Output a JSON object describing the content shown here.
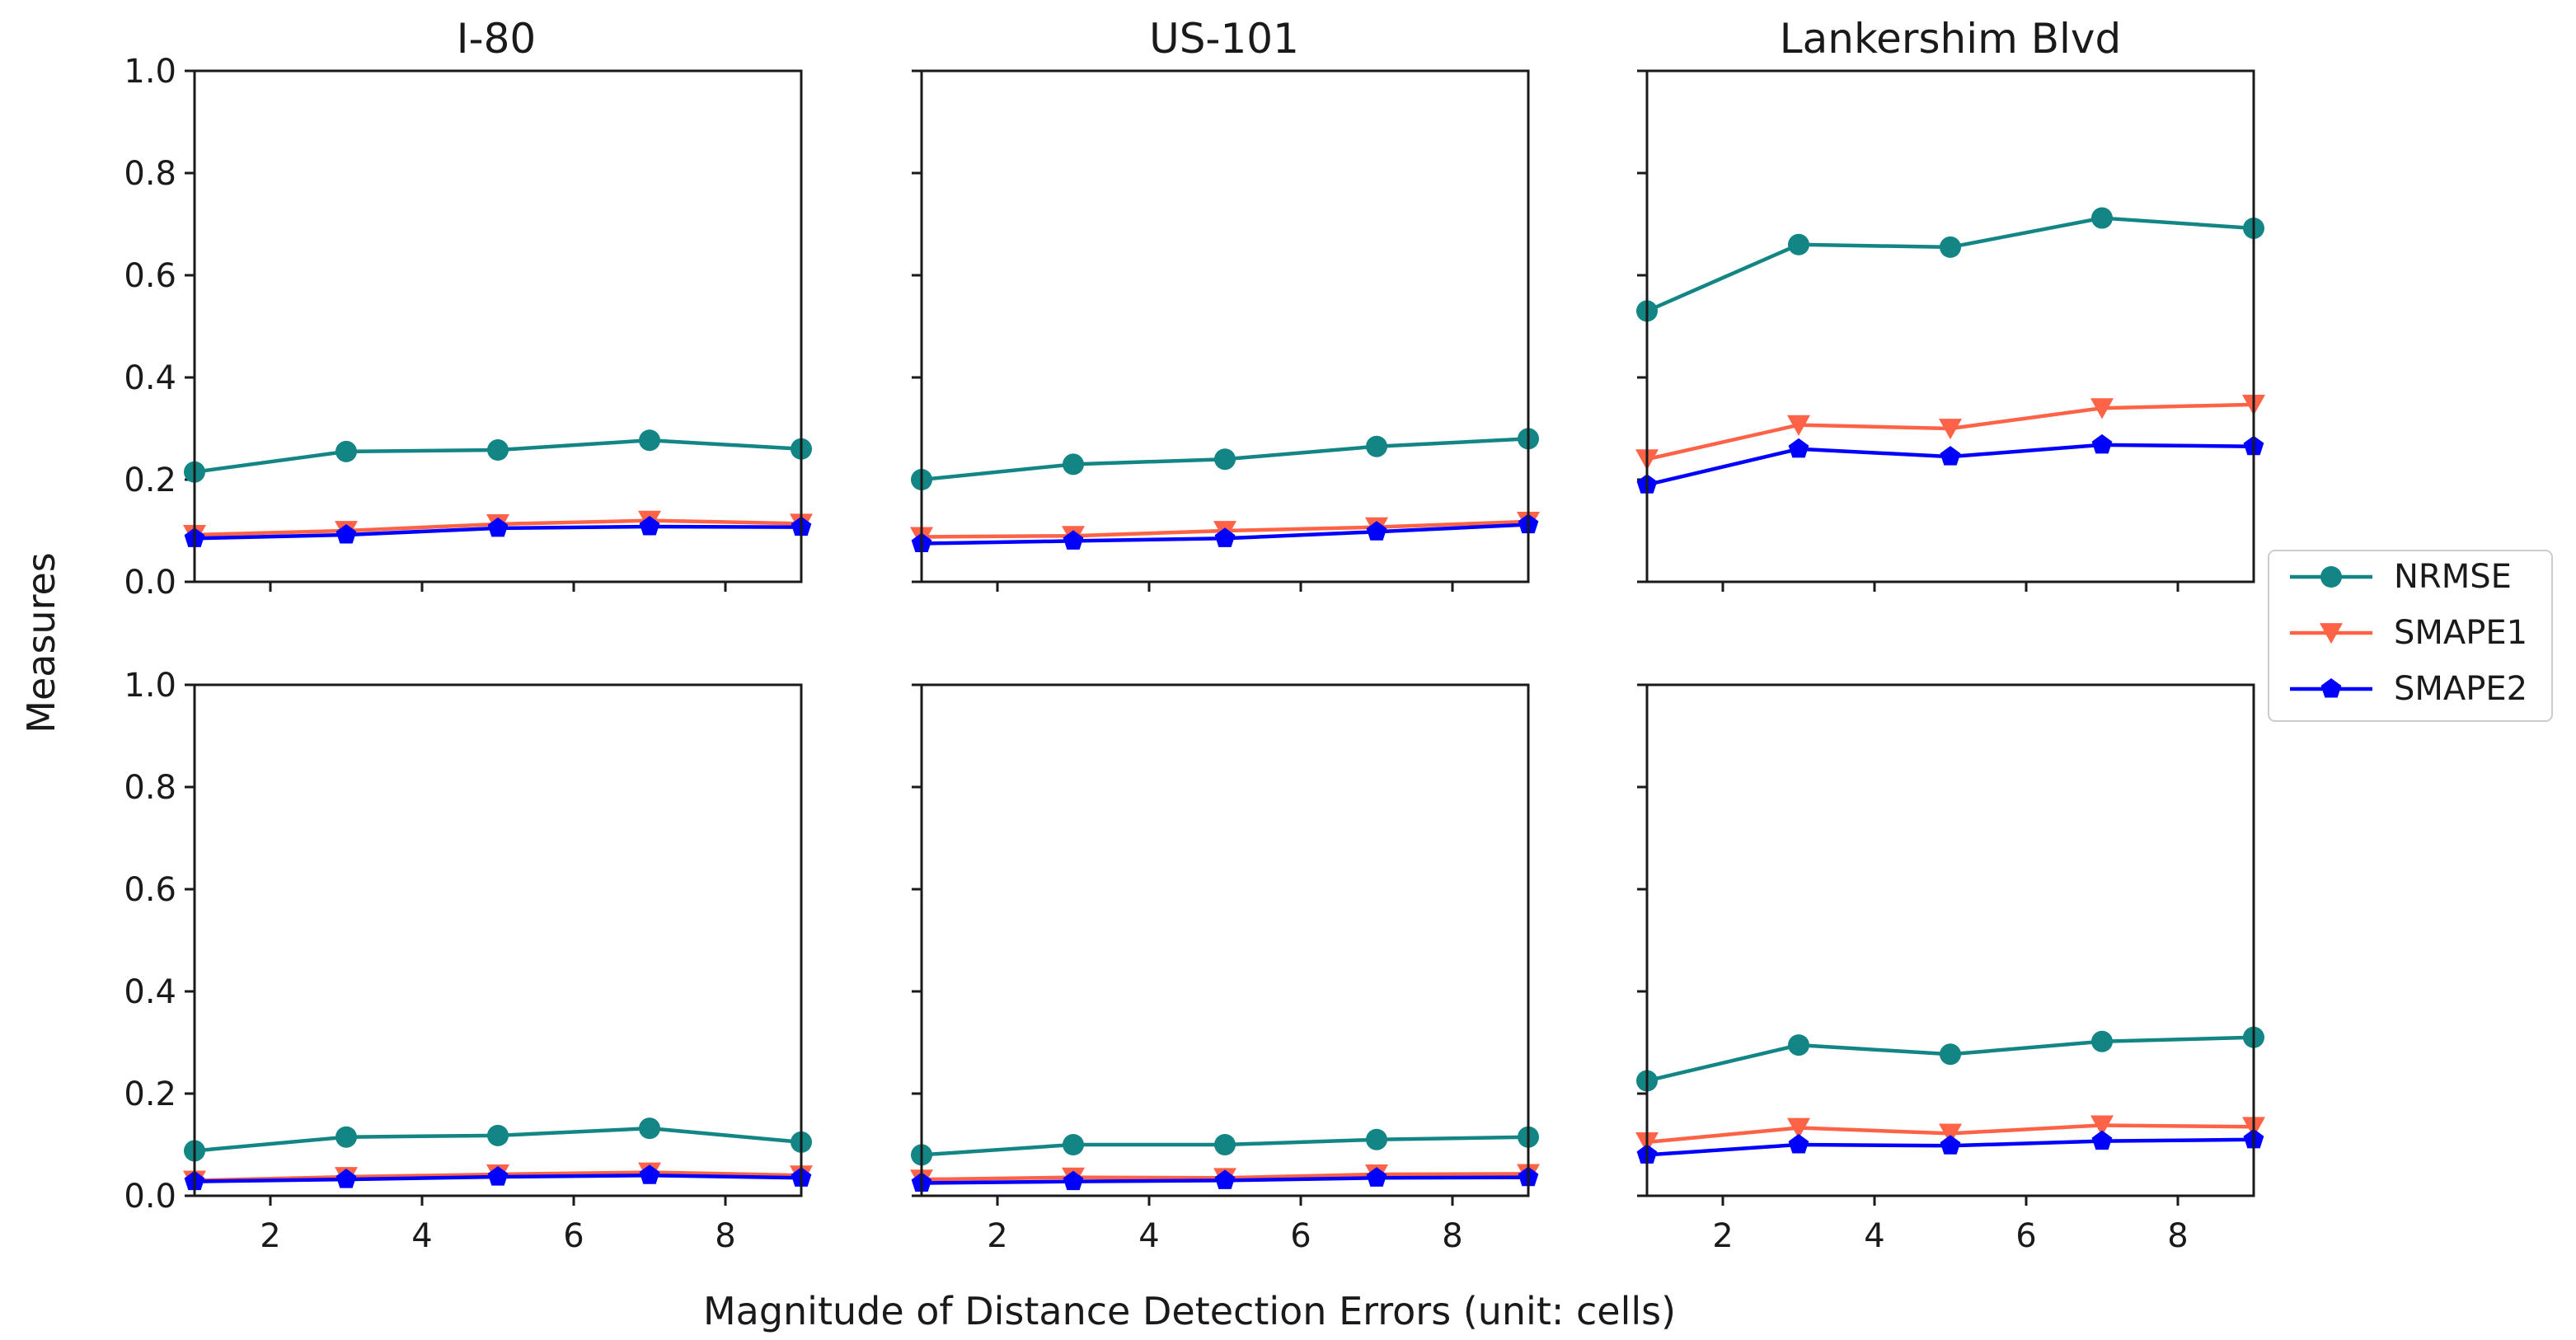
{
  "chart_data": {
    "type": "line",
    "layout": "2 rows x 3 columns",
    "x": [
      1,
      3,
      5,
      7,
      9
    ],
    "xlim": [
      1,
      9
    ],
    "ylim": [
      0,
      1
    ],
    "xticks": [
      "2",
      "4",
      "6",
      "8"
    ],
    "yticks": [
      "0.0",
      "0.2",
      "0.4",
      "0.6",
      "0.8",
      "1.0"
    ],
    "xlabel": "Magnitude of Distance Detection Errors (unit: cells)",
    "ylabel": "Measures",
    "column_titles": [
      "I-80",
      "US-101",
      "Lankershim Blvd"
    ],
    "legend_placement": "right-center",
    "series_styles": [
      {
        "name": "NRMSE",
        "color": "#138585",
        "marker": "circle"
      },
      {
        "name": "SMAPE1",
        "color": "#ff6347",
        "marker": "triangle-down"
      },
      {
        "name": "SMAPE2",
        "color": "#0000ff",
        "marker": "pentagon"
      }
    ],
    "panels": [
      {
        "id": "I-80-top",
        "series": [
          {
            "name": "NRMSE",
            "values": [
              0.215,
              0.255,
              0.258,
              0.277,
              0.26
            ]
          },
          {
            "name": "SMAPE1",
            "values": [
              0.092,
              0.1,
              0.113,
              0.12,
              0.114
            ]
          },
          {
            "name": "SMAPE2",
            "values": [
              0.085,
              0.092,
              0.105,
              0.108,
              0.107
            ]
          }
        ]
      },
      {
        "id": "US-101-top",
        "series": [
          {
            "name": "NRMSE",
            "values": [
              0.2,
              0.23,
              0.24,
              0.265,
              0.28
            ]
          },
          {
            "name": "SMAPE1",
            "values": [
              0.088,
              0.09,
              0.1,
              0.107,
              0.118
            ]
          },
          {
            "name": "SMAPE2",
            "values": [
              0.075,
              0.08,
              0.085,
              0.098,
              0.112
            ]
          }
        ]
      },
      {
        "id": "Lankershim-top",
        "series": [
          {
            "name": "NRMSE",
            "values": [
              0.53,
              0.66,
              0.655,
              0.712,
              0.692
            ]
          },
          {
            "name": "SMAPE1",
            "values": [
              0.24,
              0.307,
              0.3,
              0.34,
              0.347
            ]
          },
          {
            "name": "SMAPE2",
            "values": [
              0.19,
              0.26,
              0.245,
              0.268,
              0.265
            ]
          }
        ]
      },
      {
        "id": "I-80-bottom",
        "series": [
          {
            "name": "NRMSE",
            "values": [
              0.088,
              0.115,
              0.118,
              0.132,
              0.105
            ]
          },
          {
            "name": "SMAPE1",
            "values": [
              0.03,
              0.037,
              0.042,
              0.046,
              0.04
            ]
          },
          {
            "name": "SMAPE2",
            "values": [
              0.028,
              0.032,
              0.037,
              0.04,
              0.035
            ]
          }
        ]
      },
      {
        "id": "US-101-bottom",
        "series": [
          {
            "name": "NRMSE",
            "values": [
              0.08,
              0.1,
              0.1,
              0.11,
              0.115
            ]
          },
          {
            "name": "SMAPE1",
            "values": [
              0.032,
              0.036,
              0.035,
              0.042,
              0.043
            ]
          },
          {
            "name": "SMAPE2",
            "values": [
              0.025,
              0.028,
              0.03,
              0.035,
              0.036
            ]
          }
        ]
      },
      {
        "id": "Lankershim-bottom",
        "series": [
          {
            "name": "NRMSE",
            "values": [
              0.225,
              0.295,
              0.277,
              0.302,
              0.31
            ]
          },
          {
            "name": "SMAPE1",
            "values": [
              0.105,
              0.133,
              0.122,
              0.138,
              0.135
            ]
          },
          {
            "name": "SMAPE2",
            "values": [
              0.08,
              0.1,
              0.098,
              0.107,
              0.11
            ]
          }
        ]
      }
    ]
  }
}
